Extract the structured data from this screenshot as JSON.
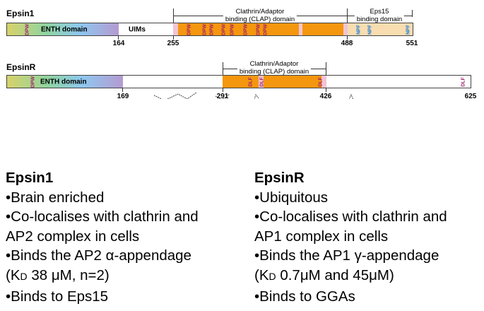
{
  "epsin1": {
    "title": "Epsin1",
    "enth_label": "ENTH domain",
    "uims_label": "UIMs",
    "clap_label_1": "Clathrin/Adaptor",
    "clap_label_2": "binding (CLAP) domain",
    "eps15_label_1": "Eps15",
    "eps15_label_2": "binding domain",
    "positions": [
      "164",
      "255",
      "488",
      "551"
    ],
    "dpw": "DPW",
    "npf": "NPF"
  },
  "epsinR": {
    "title": "EpsinR",
    "enth_label": "ENTH domain",
    "clap_label_1": "Clathrin/Adaptor",
    "clap_label_2": "binding (CLAP) domain",
    "positions": [
      "169",
      "291",
      "426",
      "625"
    ],
    "dpw": "DPW",
    "dlf": "DLF"
  },
  "notes": {
    "epsin1": {
      "heading": "Epsin1",
      "lines": [
        "•Brain enriched",
        "•Co-localises with clathrin and",
        "AP2 complex in cells",
        "•Binds the AP2 α-appendage"
      ],
      "kd_prefix": "(K",
      "kd_sub": "D",
      "kd_rest": " 38 μM, n=2)",
      "last": "•Binds to Eps15"
    },
    "epsinR": {
      "heading": "EpsinR",
      "lines": [
        "•Ubiquitous",
        "•Co-localises with clathrin and",
        "AP1 complex in cells",
        "•Binds the AP1 γ-appendage"
      ],
      "kd_prefix": "(K",
      "kd_sub": "D",
      "kd_rest": " 0.7μM and 45μM)",
      "last": "•Binds to GGAs"
    }
  }
}
